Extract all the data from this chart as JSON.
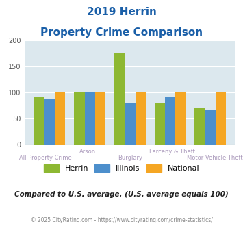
{
  "title_line1": "2019 Herrin",
  "title_line2": "Property Crime Comparison",
  "categories_row1": [
    "All Property Crime",
    "",
    "Burglary",
    "",
    "Motor Vehicle Theft"
  ],
  "categories_row2": [
    "",
    "Arson",
    "",
    "Larceny & Theft",
    ""
  ],
  "categories": [
    "All Property Crime",
    "Arson",
    "Burglary",
    "Larceny & Theft",
    "Motor Vehicle Theft"
  ],
  "herrin": [
    93,
    100,
    176,
    79,
    72
  ],
  "illinois": [
    87,
    100,
    79,
    93,
    68
  ],
  "national": [
    100,
    100,
    100,
    100,
    100
  ],
  "herrin_color": "#8db832",
  "illinois_color": "#4d8fcc",
  "national_color": "#f5a623",
  "bg_color": "#dce8ee",
  "title_color": "#1a5fa8",
  "xlabel_color_row1": "#aa99bb",
  "xlabel_color_row2": "#aa99bb",
  "ylabel_max": 200,
  "ylabel_ticks": [
    0,
    50,
    100,
    150,
    200
  ],
  "note": "Compared to U.S. average. (U.S. average equals 100)",
  "footer": "© 2025 CityRating.com - https://www.cityrating.com/crime-statistics/",
  "note_color": "#222222",
  "footer_color": "#888888",
  "legend_labels": [
    "Herrin",
    "Illinois",
    "National"
  ]
}
